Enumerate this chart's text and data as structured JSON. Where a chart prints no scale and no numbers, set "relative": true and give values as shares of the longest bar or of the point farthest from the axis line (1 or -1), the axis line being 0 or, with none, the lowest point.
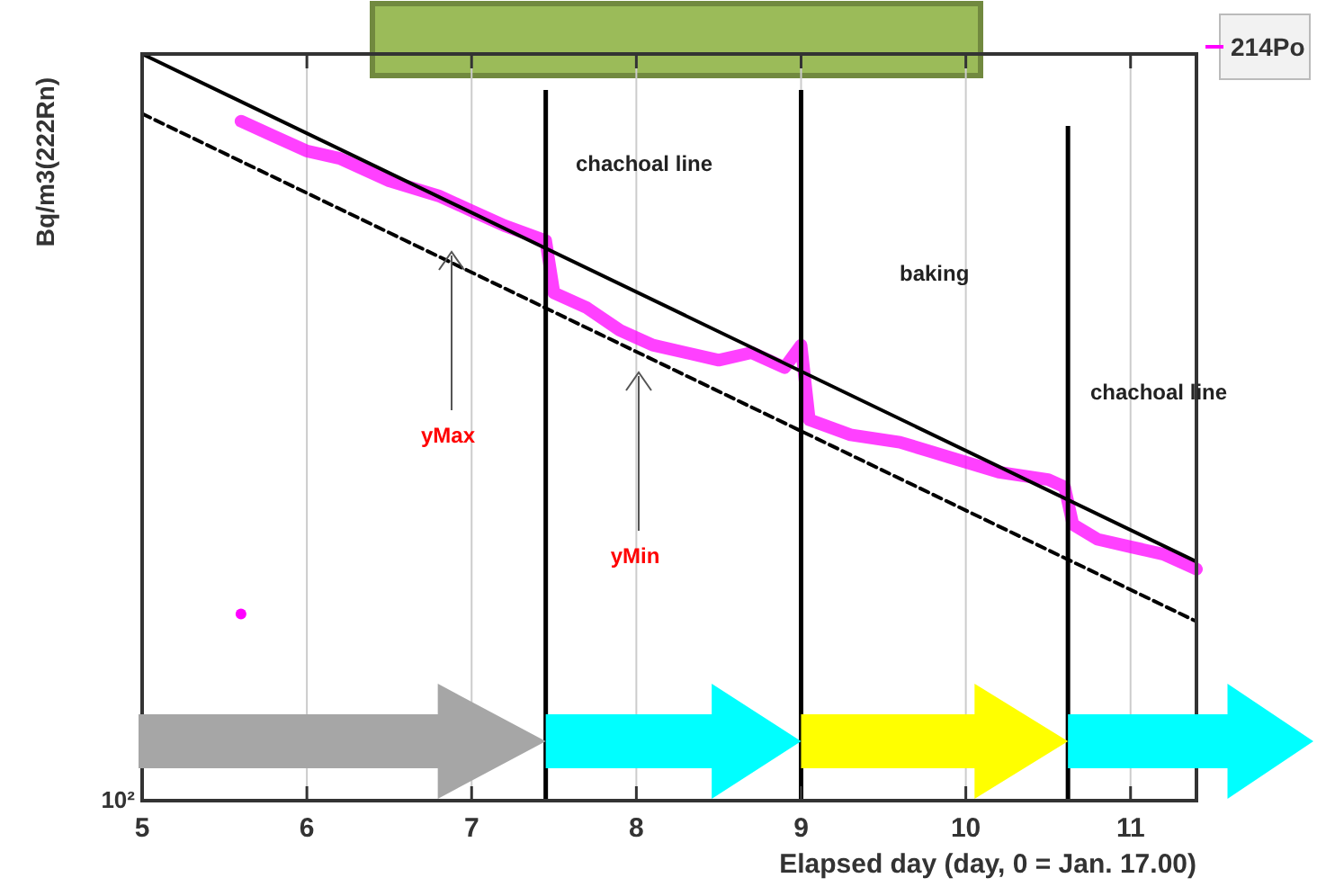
{
  "chart_data": {
    "type": "line",
    "relative": true,
    "xlabel": "Elapsed day (day, 0 = Jan. 17.00)",
    "ylabel": "Bq/m3(222Rn)",
    "xlim": [
      5,
      11.4
    ],
    "xticks": [
      5,
      6,
      7,
      8,
      9,
      10,
      11
    ],
    "grid": "x",
    "legend": "top right",
    "series": [
      {
        "name": "214Po",
        "color": "#ff00ff",
        "x": [
          5.6,
          5.8,
          6.0,
          6.2,
          6.5,
          6.8,
          7.0,
          7.2,
          7.45,
          7.5,
          7.7,
          7.9,
          8.1,
          8.3,
          8.5,
          8.7,
          8.9,
          9.0,
          9.05,
          9.3,
          9.6,
          9.9,
          10.2,
          10.5,
          10.6,
          10.65,
          10.8,
          11.0,
          11.2,
          11.4
        ],
        "values": [
          0.91,
          0.89,
          0.87,
          0.86,
          0.83,
          0.81,
          0.79,
          0.77,
          0.75,
          0.68,
          0.66,
          0.63,
          0.61,
          0.6,
          0.59,
          0.6,
          0.58,
          0.61,
          0.51,
          0.49,
          0.48,
          0.46,
          0.44,
          0.43,
          0.42,
          0.37,
          0.35,
          0.34,
          0.33,
          0.31
        ]
      },
      {
        "color": "#000000",
        "x": [
          5,
          11.4
        ],
        "values": [
          1,
          0.32
        ],
        "line_style": "solid"
      },
      {
        "color": "#000000",
        "x": [
          5,
          11.4
        ],
        "values": [
          0.92,
          0.24
        ],
        "line_style": "dashed"
      },
      {
        "type": "scatter",
        "color": "#ff00ff",
        "x": [
          5.6
        ],
        "values": [
          0.25
        ],
        "marker": "circle"
      }
    ],
    "ref_lines": [
      {
        "axis": "x",
        "value": 7.45,
        "color": "#000000"
      },
      {
        "axis": "x",
        "value": 9.0,
        "color": "#000000"
      },
      {
        "axis": "x",
        "value": 10.62,
        "color": "#000000"
      }
    ],
    "annotations": [
      "chachoal line",
      "baking",
      "chachoal line",
      "yMax",
      "yMin",
      "10²"
    ]
  }
}
